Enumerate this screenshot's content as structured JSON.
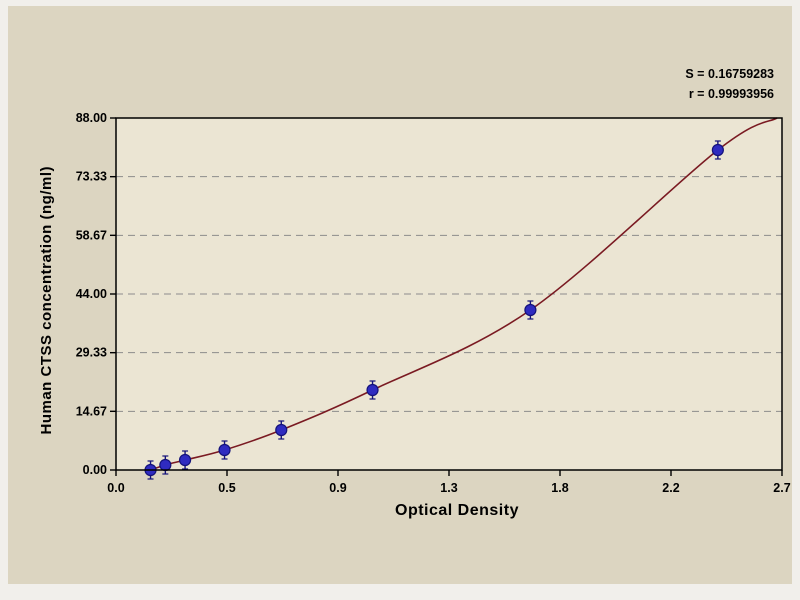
{
  "stats": {
    "s_line": "S = 0.16759283",
    "r_line": "r = 0.99993956"
  },
  "chart_data": {
    "type": "scatter",
    "title": "",
    "xlabel": "Optical Density",
    "ylabel": "Human CTSS concentration (ng/ml)",
    "xlim": [
      0,
      2.7
    ],
    "ylim": [
      0,
      88
    ],
    "x_ticks": [
      0,
      0.45,
      0.9,
      1.35,
      1.8,
      2.25,
      2.7
    ],
    "x_tick_labels": [
      "0.0",
      "0.5",
      "0.9",
      "1.3",
      "1.8",
      "2.2",
      "2.7"
    ],
    "y_ticks": [
      0,
      14.67,
      29.33,
      44,
      58.67,
      73.33,
      88
    ],
    "y_tick_labels": [
      "0.00",
      "14.67",
      "29.33",
      "44.00",
      "58.67",
      "73.33",
      "88.00"
    ],
    "grid": "horizontal-dashed",
    "legend": "none",
    "points": [
      {
        "x": 0.14,
        "y": 0
      },
      {
        "x": 0.2,
        "y": 1.25
      },
      {
        "x": 0.28,
        "y": 2.5
      },
      {
        "x": 0.44,
        "y": 5
      },
      {
        "x": 0.67,
        "y": 10
      },
      {
        "x": 1.04,
        "y": 20
      },
      {
        "x": 1.68,
        "y": 40
      },
      {
        "x": 2.44,
        "y": 80
      }
    ],
    "curve_end": {
      "x": 2.68,
      "y": 88
    },
    "fit": {
      "s": "0.16759283",
      "r": "0.99993956"
    },
    "colors": {
      "panel_bg": "#dcd5c1",
      "plot_bg": "#ebe5d3",
      "grid": "#8c8c8c",
      "curve": "#7a1a22",
      "point_fill": "#2f2bc0",
      "point_stroke": "#14127a",
      "axis": "#000000"
    }
  }
}
